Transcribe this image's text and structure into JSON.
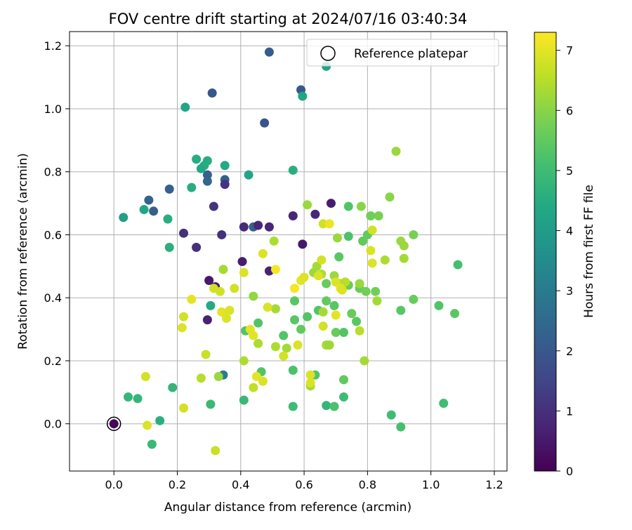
{
  "chart_data": {
    "type": "scatter",
    "title": "FOV centre drift starting at 2024/07/16 03:40:34",
    "xlabel": "Angular distance from reference (arcmin)",
    "ylabel": "Rotation from reference (arcmin)",
    "xlim": [
      -0.14,
      1.24
    ],
    "ylim": [
      -0.15,
      1.245
    ],
    "x_ticks": [
      0.0,
      0.2,
      0.4,
      0.6,
      0.8,
      1.0,
      1.2
    ],
    "x_tick_labels": [
      "0.0",
      "0.2",
      "0.4",
      "0.6",
      "0.8",
      "1.0",
      "1.2"
    ],
    "y_ticks": [
      0.0,
      0.2,
      0.4,
      0.6,
      0.8,
      1.0,
      1.2
    ],
    "y_tick_labels": [
      "0.0",
      "0.2",
      "0.4",
      "0.6",
      "0.8",
      "1.0",
      "1.2"
    ],
    "grid": true,
    "legend": {
      "position": "top-right",
      "entries": [
        "Reference platepar"
      ]
    },
    "reference_point": {
      "x": 0.0,
      "y": 0.0
    },
    "colorbar": {
      "label": "Hours from first FF file",
      "range": [
        0,
        7.3
      ],
      "ticks": [
        0,
        1,
        2,
        3,
        4,
        5,
        6,
        7
      ],
      "tick_labels": [
        "0",
        "1",
        "2",
        "3",
        "4",
        "5",
        "6",
        "7"
      ],
      "colormap": "viridis"
    },
    "series": [
      {
        "points": [
          [
            0.0,
            0.0,
            0.1
          ],
          [
            0.49,
            1.18,
            2.1
          ],
          [
            0.31,
            1.05,
            2.0
          ],
          [
            0.59,
            1.06,
            2.0
          ],
          [
            0.475,
            0.955,
            1.9
          ],
          [
            0.11,
            0.71,
            2.3
          ],
          [
            0.175,
            0.745,
            2.2
          ],
          [
            0.125,
            0.675,
            2.2
          ],
          [
            0.295,
            0.79,
            2.3
          ],
          [
            0.35,
            0.775,
            2.2
          ],
          [
            0.295,
            0.77,
            2.4
          ],
          [
            0.44,
            0.625,
            2.2
          ],
          [
            0.345,
            0.155,
            3.0
          ],
          [
            0.35,
            0.76,
            1.1
          ],
          [
            0.315,
            0.69,
            1.1
          ],
          [
            0.22,
            0.605,
            1.0
          ],
          [
            0.26,
            0.56,
            1.0
          ],
          [
            0.34,
            0.6,
            1.0
          ],
          [
            0.41,
            0.625,
            0.9
          ],
          [
            0.455,
            0.63,
            0.8
          ],
          [
            0.49,
            0.625,
            0.8
          ],
          [
            0.565,
            0.66,
            0.8
          ],
          [
            0.635,
            0.665,
            0.8
          ],
          [
            0.685,
            0.7,
            0.6
          ],
          [
            0.595,
            0.57,
            0.5
          ],
          [
            0.405,
            0.515,
            0.6
          ],
          [
            0.49,
            0.485,
            0.7
          ],
          [
            0.3,
            0.455,
            0.5
          ],
          [
            0.32,
            0.435,
            0.5
          ],
          [
            0.295,
            0.33,
            0.7
          ],
          [
            0.67,
            1.135,
            4.2
          ],
          [
            0.225,
            1.005,
            4.3
          ],
          [
            0.595,
            1.04,
            4.3
          ],
          [
            0.26,
            0.84,
            4.5
          ],
          [
            0.285,
            0.82,
            4.6
          ],
          [
            0.295,
            0.835,
            4.5
          ],
          [
            0.275,
            0.81,
            4.4
          ],
          [
            0.245,
            0.75,
            4.5
          ],
          [
            0.35,
            0.82,
            4.4
          ],
          [
            0.425,
            0.79,
            4.3
          ],
          [
            0.565,
            0.805,
            4.6
          ],
          [
            0.03,
            0.655,
            4.1
          ],
          [
            0.095,
            0.68,
            4.3
          ],
          [
            0.17,
            0.65,
            4.5
          ],
          [
            0.175,
            0.56,
            4.6
          ],
          [
            0.305,
            0.375,
            4.4
          ],
          [
            0.185,
            0.115,
            4.8
          ],
          [
            0.045,
            0.085,
            4.8
          ],
          [
            0.075,
            0.08,
            4.8
          ],
          [
            0.145,
            0.01,
            4.6
          ],
          [
            0.12,
            -0.065,
            4.9
          ],
          [
            0.305,
            0.062,
            4.9
          ],
          [
            0.41,
            0.075,
            4.9
          ],
          [
            0.565,
            0.055,
            5.0
          ],
          [
            0.67,
            0.058,
            4.8
          ],
          [
            0.695,
            0.055,
            5.2
          ],
          [
            0.725,
            0.085,
            5.0
          ],
          [
            0.875,
            0.028,
            5.0
          ],
          [
            0.905,
            -0.01,
            5.1
          ],
          [
            1.04,
            0.065,
            5.0
          ],
          [
            0.415,
            0.295,
            5.3
          ],
          [
            0.455,
            0.32,
            5.3
          ],
          [
            0.465,
            0.165,
            5.3
          ],
          [
            0.535,
            0.28,
            5.3
          ],
          [
            0.57,
            0.33,
            5.4
          ],
          [
            0.57,
            0.39,
            5.4
          ],
          [
            0.59,
            0.3,
            5.5
          ],
          [
            0.61,
            0.34,
            5.3
          ],
          [
            0.565,
            0.17,
            5.2
          ],
          [
            0.635,
            0.155,
            5.3
          ],
          [
            0.645,
            0.36,
            5.3
          ],
          [
            0.67,
            0.39,
            5.5
          ],
          [
            0.67,
            0.445,
            5.6
          ],
          [
            0.695,
            0.375,
            5.4
          ],
          [
            0.7,
            0.29,
            5.6
          ],
          [
            0.71,
            0.53,
            5.4
          ],
          [
            0.715,
            0.44,
            5.3
          ],
          [
            0.725,
            0.29,
            5.3
          ],
          [
            0.725,
            0.14,
            5.5
          ],
          [
            0.74,
            0.44,
            5.6
          ],
          [
            0.74,
            0.595,
            5.2
          ],
          [
            0.74,
            0.69,
            5.3
          ],
          [
            0.75,
            0.35,
            5.6
          ],
          [
            0.765,
            0.325,
            5.4
          ],
          [
            0.775,
            0.43,
            5.6
          ],
          [
            0.785,
            0.58,
            5.5
          ],
          [
            0.795,
            0.42,
            5.7
          ],
          [
            0.8,
            0.6,
            5.5
          ],
          [
            0.81,
            0.66,
            5.7
          ],
          [
            0.825,
            0.42,
            5.7
          ],
          [
            0.835,
            0.66,
            5.8
          ],
          [
            0.905,
            0.36,
            5.4
          ],
          [
            0.945,
            0.395,
            5.6
          ],
          [
            0.945,
            0.6,
            5.8
          ],
          [
            1.025,
            0.375,
            5.3
          ],
          [
            1.075,
            0.35,
            5.4
          ],
          [
            1.085,
            0.505,
            5.1
          ],
          [
            0.89,
            0.865,
            6.2
          ],
          [
            0.87,
            0.72,
            6.0
          ],
          [
            0.78,
            0.69,
            6.0
          ],
          [
            0.61,
            0.695,
            6.2
          ],
          [
            0.505,
            0.58,
            6.4
          ],
          [
            0.44,
            0.405,
            6.1
          ],
          [
            0.345,
            0.49,
            6.3
          ],
          [
            0.33,
            0.15,
            6.2
          ],
          [
            0.275,
            0.145,
            6.5
          ],
          [
            0.32,
            -0.085,
            6.7
          ],
          [
            0.44,
            0.115,
            6.6
          ],
          [
            0.41,
            0.2,
            6.4
          ],
          [
            0.455,
            0.255,
            6.4
          ],
          [
            0.51,
            0.365,
            6.3
          ],
          [
            0.51,
            0.245,
            6.4
          ],
          [
            0.545,
            0.24,
            6.3
          ],
          [
            0.62,
            0.12,
            6.3
          ],
          [
            0.63,
            0.48,
            6.2
          ],
          [
            0.64,
            0.5,
            6.3
          ],
          [
            0.655,
            0.475,
            6.4
          ],
          [
            0.66,
            0.355,
            6.3
          ],
          [
            0.67,
            0.25,
            6.3
          ],
          [
            0.68,
            0.25,
            6.2
          ],
          [
            0.695,
            0.47,
            6.2
          ],
          [
            0.705,
            0.59,
            6.2
          ],
          [
            0.715,
            0.445,
            6.4
          ],
          [
            0.73,
            0.45,
            6.5
          ],
          [
            0.775,
            0.445,
            6.2
          ],
          [
            0.79,
            0.2,
            6.3
          ],
          [
            0.775,
            0.295,
            6.5
          ],
          [
            0.83,
            0.39,
            6.3
          ],
          [
            0.855,
            0.52,
            6.4
          ],
          [
            0.905,
            0.58,
            6.2
          ],
          [
            0.915,
            0.565,
            6.2
          ],
          [
            0.915,
            0.525,
            6.3
          ],
          [
            0.1,
            0.15,
            6.8
          ],
          [
            0.105,
            -0.005,
            6.9
          ],
          [
            0.215,
            0.305,
            6.9
          ],
          [
            0.22,
            0.05,
            6.8
          ],
          [
            0.22,
            0.34,
            6.8
          ],
          [
            0.245,
            0.395,
            7.0
          ],
          [
            0.29,
            0.22,
            6.7
          ],
          [
            0.315,
            0.43,
            6.8
          ],
          [
            0.335,
            0.42,
            6.8
          ],
          [
            0.34,
            0.355,
            7.0
          ],
          [
            0.355,
            0.335,
            6.9
          ],
          [
            0.365,
            0.36,
            6.9
          ],
          [
            0.38,
            0.43,
            6.8
          ],
          [
            0.41,
            0.48,
            6.9
          ],
          [
            0.43,
            0.3,
            7.0
          ],
          [
            0.44,
            0.28,
            7.0
          ],
          [
            0.45,
            0.15,
            7.0
          ],
          [
            0.47,
            0.135,
            6.9
          ],
          [
            0.47,
            0.54,
            6.9
          ],
          [
            0.485,
            0.37,
            6.9
          ],
          [
            0.51,
            0.49,
            7.2
          ],
          [
            0.535,
            0.215,
            6.8
          ],
          [
            0.57,
            0.43,
            7.2
          ],
          [
            0.59,
            0.455,
            7.0
          ],
          [
            0.6,
            0.465,
            6.9
          ],
          [
            0.62,
            0.13,
            6.9
          ],
          [
            0.62,
            0.155,
            6.9
          ],
          [
            0.645,
            0.47,
            6.9
          ],
          [
            0.655,
            0.52,
            6.8
          ],
          [
            0.66,
            0.635,
            6.8
          ],
          [
            0.66,
            0.31,
            6.8
          ],
          [
            0.68,
            0.635,
            7.1
          ],
          [
            0.7,
            0.345,
            7.0
          ],
          [
            0.7,
            0.45,
            6.9
          ],
          [
            0.715,
            0.43,
            7.0
          ],
          [
            0.72,
            0.425,
            6.9
          ],
          [
            0.81,
            0.55,
            6.9
          ],
          [
            0.815,
            0.615,
            6.8
          ],
          [
            0.815,
            0.51,
            6.9
          ],
          [
            0.58,
            0.25,
            6.9
          ]
        ]
      }
    ]
  }
}
